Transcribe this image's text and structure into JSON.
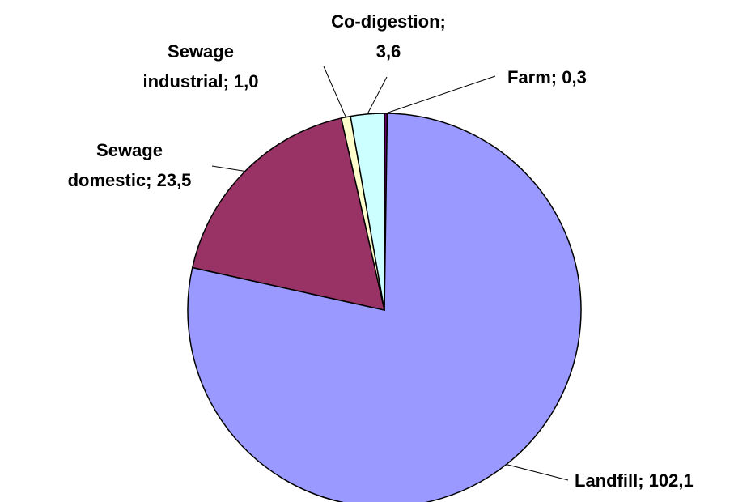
{
  "chart_data": {
    "type": "pie",
    "categories": [
      "Farm",
      "Landfill",
      "Sewage domestic",
      "Sewage industrial",
      "Co-digestion"
    ],
    "values": [
      0.3,
      102.1,
      23.5,
      1.0,
      3.6
    ],
    "value_labels": [
      [
        "Farm; 0,3"
      ],
      [
        "Landfill; 102,1"
      ],
      [
        "Sewage",
        "domestic; 23,5"
      ],
      [
        "Sewage",
        "industrial; 1,0"
      ],
      [
        "Co-digestion;",
        "3,6"
      ]
    ],
    "colors": [
      "#660066",
      "#9999FF",
      "#993366",
      "#FFFFCC",
      "#CCFFFF"
    ]
  }
}
